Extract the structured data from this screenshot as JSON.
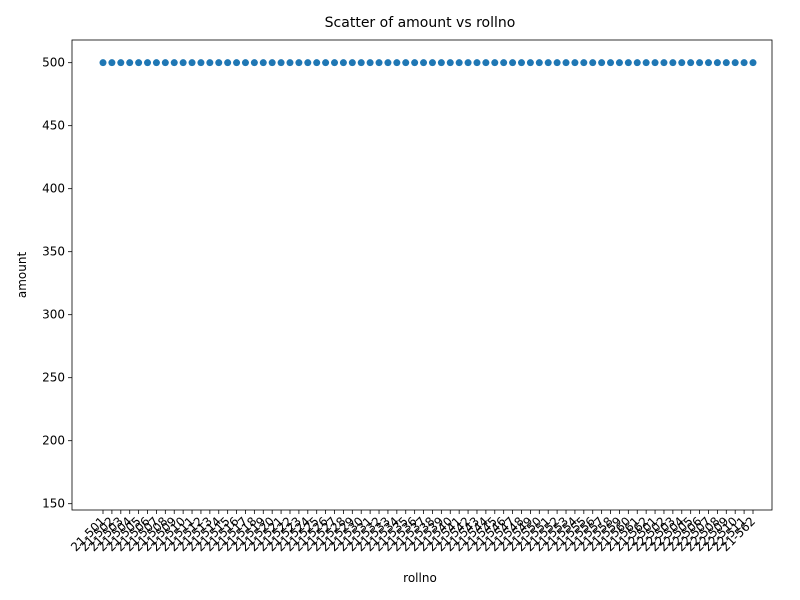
{
  "chart_data": {
    "type": "scatter",
    "title": "Scatter of amount vs rollno",
    "xlabel": "rollno",
    "ylabel": "amount",
    "ylim": [
      145,
      518
    ],
    "yticks": [
      150,
      200,
      250,
      300,
      350,
      400,
      450,
      500
    ],
    "categories": [
      "21-501",
      "21-502",
      "21-503",
      "21-504",
      "21-505",
      "21-506",
      "21-507",
      "21-508",
      "21-509",
      "21-510",
      "21-511",
      "21-512",
      "21-513",
      "21-514",
      "21-515",
      "21-516",
      "21-517",
      "21-518",
      "21-519",
      "21-520",
      "21-521",
      "21-522",
      "21-523",
      "21-524",
      "21-525",
      "21-526",
      "21-527",
      "21-528",
      "21-529",
      "21-530",
      "21-531",
      "21-532",
      "21-533",
      "21-534",
      "21-535",
      "21-536",
      "21-537",
      "21-538",
      "21-539",
      "21-540",
      "21-541",
      "21-542",
      "21-543",
      "21-544",
      "21-545",
      "21-546",
      "21-547",
      "21-548",
      "21-549",
      "21-550",
      "21-551",
      "21-552",
      "21-553",
      "21-554",
      "21-555",
      "21-556",
      "21-557",
      "21-558",
      "21-559",
      "21-560",
      "21-561",
      "21-562",
      "22-501",
      "22-502",
      "22-503",
      "22-504",
      "22-505",
      "22-506",
      "22-507",
      "22-508",
      "22-509",
      "22-510",
      "22-511",
      "21-562"
    ],
    "values": [
      500,
      500,
      500,
      500,
      500,
      500,
      500,
      500,
      500,
      500,
      500,
      500,
      500,
      500,
      500,
      500,
      500,
      500,
      500,
      500,
      500,
      500,
      500,
      500,
      500,
      500,
      500,
      500,
      500,
      500,
      500,
      500,
      500,
      500,
      500,
      500,
      500,
      500,
      500,
      500,
      500,
      500,
      500,
      500,
      500,
      500,
      500,
      500,
      500,
      500,
      500,
      500,
      500,
      500,
      500,
      500,
      500,
      500,
      500,
      500,
      500,
      500,
      500,
      500,
      500,
      500,
      500,
      500,
      500,
      500,
      500,
      500,
      500,
      500
    ],
    "color": "#1f77b4",
    "grid": false
  }
}
